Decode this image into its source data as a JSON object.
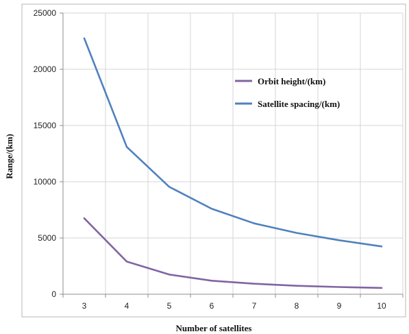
{
  "chart_data": {
    "type": "line",
    "title": "",
    "xlabel": "Number of satellites",
    "ylabel": "Range/(km)",
    "x": [
      3,
      4,
      5,
      6,
      7,
      8,
      9,
      10
    ],
    "xlim": [
      2.5,
      10.5
    ],
    "ylim": [
      0,
      25000
    ],
    "yticks": [
      0,
      5000,
      10000,
      15000,
      20000,
      25000
    ],
    "grid": true,
    "legend_position": "upper-right inside plot",
    "series": [
      {
        "name": "Orbit height/(km)",
        "color": "#8064A2",
        "values": [
          6750,
          2900,
          1750,
          1200,
          930,
          750,
          640,
          560
        ]
      },
      {
        "name": "Satellite spacing/(km)",
        "color": "#4F81BD",
        "values": [
          22750,
          13100,
          9550,
          7600,
          6300,
          5450,
          4800,
          4250
        ]
      }
    ]
  }
}
